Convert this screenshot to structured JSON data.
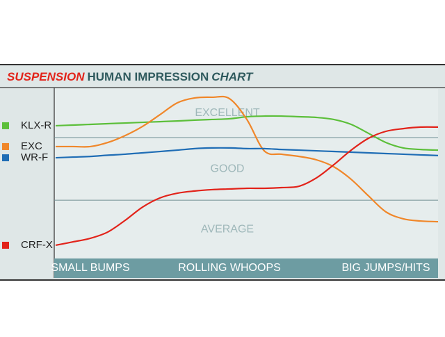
{
  "chart_data": {
    "type": "line",
    "title": {
      "part1": "SUSPENSION",
      "part2": "HUMAN IMPRESSION",
      "part3": "CHART"
    },
    "categories": [
      null,
      null,
      "SMALL BUMPS",
      null,
      null,
      null,
      null,
      null,
      null,
      null,
      "ROLLING WHOOPS",
      null,
      null,
      null,
      null,
      null,
      null,
      null,
      null,
      "BIG JUMPS/HITS",
      null,
      null,
      null
    ],
    "ylim": [
      0,
      100
    ],
    "zones": [
      {
        "label": "EXCELLENT",
        "from": 71.3,
        "to": 100
      },
      {
        "label": "GOOD",
        "from": 34.4,
        "to": 71.3
      },
      {
        "label": "AVERAGE",
        "from": 0,
        "to": 34.4
      }
    ],
    "series": [
      {
        "name": "KLX-R",
        "color": "#5cbf3a",
        "values": [
          78.3,
          78.7,
          79.1,
          79.5,
          79.9,
          80.3,
          80.7,
          81.1,
          81.6,
          82.0,
          82.4,
          83.6,
          84.0,
          84.0,
          83.6,
          83.2,
          82.0,
          79.1,
          73.8,
          68.4,
          65.2,
          64.3,
          63.9
        ]
      },
      {
        "name": "EXC",
        "color": "#f0872a",
        "values": [
          66.0,
          66.0,
          66.0,
          68.4,
          72.5,
          77.9,
          84.8,
          91.8,
          94.7,
          95.1,
          94.3,
          82.0,
          63.5,
          61.5,
          60.2,
          58.2,
          54.1,
          46.7,
          36.9,
          27.5,
          23.4,
          22.1,
          21.7
        ]
      },
      {
        "name": "WR-F",
        "color": "#1f6db5",
        "values": [
          59.4,
          59.8,
          60.2,
          60.9,
          61.5,
          62.3,
          63.1,
          63.9,
          64.8,
          65.2,
          65.2,
          64.8,
          64.8,
          64.3,
          63.9,
          63.5,
          63.1,
          62.7,
          62.3,
          61.9,
          61.5,
          61.1,
          60.7
        ]
      },
      {
        "name": "CRF-X",
        "color": "#e2231a",
        "values": [
          7.8,
          9.8,
          11.9,
          15.6,
          22.5,
          30.3,
          35.7,
          38.5,
          39.8,
          40.6,
          41.0,
          41.4,
          41.4,
          41.8,
          42.6,
          47.5,
          55.3,
          63.9,
          70.9,
          75.0,
          76.6,
          77.5,
          77.5
        ]
      }
    ]
  }
}
